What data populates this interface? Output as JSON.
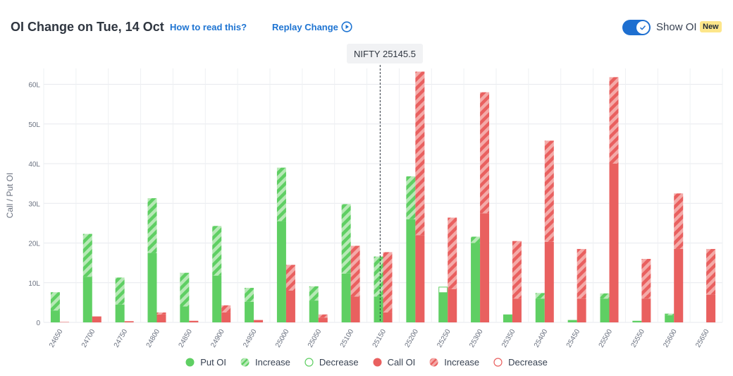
{
  "header": {
    "title": "OI Change on Tue, 14 Oct",
    "how_link": "How to read this?",
    "replay_link": "Replay Change",
    "toggle_label": "Show OI",
    "new_badge": "New"
  },
  "spot": {
    "label": "NIFTY 25145.5",
    "value": 25145.5
  },
  "colors": {
    "put": "#5fcf63",
    "put_light": "#b7e9b6",
    "call": "#e9605f",
    "call_light": "#f4aaa8",
    "accent": "#1e6fd0"
  },
  "chart_data": {
    "type": "bar",
    "ylabel": "Call / Put OI",
    "y_unit": "L",
    "ylim": [
      0,
      64
    ],
    "yticks": [
      0,
      10,
      20,
      30,
      40,
      50,
      60
    ],
    "ytick_labels": [
      "0",
      "10L",
      "20L",
      "30L",
      "40L",
      "50L",
      "60L"
    ],
    "categories": [
      "24650",
      "24700",
      "24750",
      "24800",
      "24850",
      "24900",
      "24950",
      "25000",
      "25050",
      "25100",
      "25150",
      "25200",
      "25250",
      "25300",
      "25350",
      "25400",
      "25450",
      "25500",
      "25550",
      "25600",
      "25650"
    ],
    "series": [
      {
        "name": "Put OI",
        "side": "put",
        "values": [
          3.0,
          11.5,
          4.5,
          17.5,
          4.0,
          11.8,
          5.2,
          25.5,
          5.5,
          12.3,
          6.5,
          26.0,
          7.5,
          20.0,
          2.0,
          6.0,
          0.6,
          6.0,
          0.4,
          1.8,
          0
        ],
        "increase": [
          4.6,
          10.8,
          6.8,
          13.8,
          8.5,
          12.5,
          3.5,
          13.5,
          3.6,
          17.5,
          10.1,
          10.8,
          0,
          1.6,
          0,
          1.4,
          0,
          1.3,
          0,
          0.4,
          0
        ],
        "decrease": [
          0,
          0,
          0,
          0,
          0,
          0,
          0,
          0,
          0,
          0,
          0,
          0,
          1.4,
          0,
          0,
          0,
          0,
          0,
          0,
          0,
          0
        ]
      },
      {
        "name": "Call OI",
        "side": "call",
        "values": [
          0.1,
          1.5,
          0.3,
          2.0,
          0.4,
          2.5,
          0.6,
          8.0,
          1.2,
          6.5,
          2.5,
          22.0,
          8.4,
          27.5,
          6.0,
          20.3,
          6.0,
          40.0,
          6.0,
          18.5,
          7.0
        ],
        "increase": [
          0,
          0,
          0,
          0.5,
          0,
          1.8,
          0,
          6.5,
          0.8,
          12.8,
          15.2,
          41.2,
          18.0,
          30.5,
          14.5,
          25.5,
          12.5,
          21.8,
          10.0,
          14.0,
          11.5
        ],
        "decrease": [
          0,
          0,
          0,
          0,
          0,
          0,
          0,
          0,
          0,
          0,
          0,
          0,
          0,
          0,
          0,
          0,
          0,
          0,
          0,
          0,
          0
        ]
      }
    ],
    "legend": [
      "Put OI",
      "Increase",
      "Decrease",
      "Call OI",
      "Increase",
      "Decrease"
    ],
    "legend_placement": "bottom",
    "grid": true
  }
}
